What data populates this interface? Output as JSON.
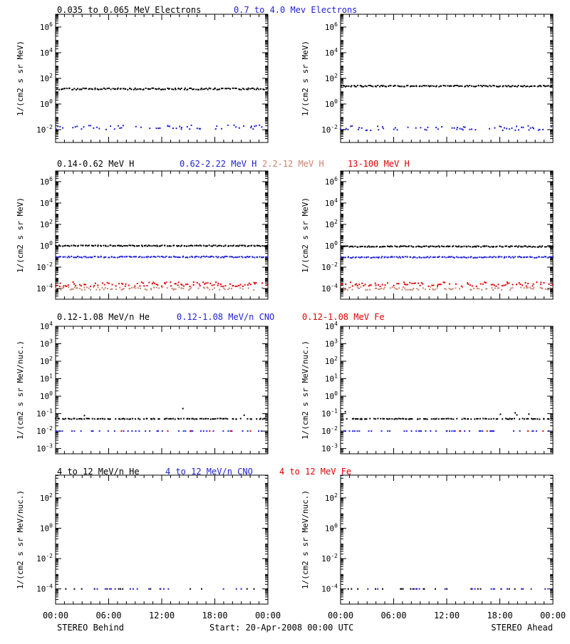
{
  "colors": {
    "black": "#000000",
    "blue": "#1f1fd6",
    "salmon": "#c9826d",
    "red": "#e00000"
  },
  "footer": {
    "left": "STEREO Behind",
    "center": "Start: 20-Apr-2008 00:00 UTC",
    "right": "STEREO Ahead"
  },
  "chart_data": [
    {
      "type": "scatter",
      "row": 0,
      "title_segments": [
        {
          "text": "0.035 to 0.065 MeV Electrons",
          "color": "black"
        },
        {
          "text": "0.7 to 4.0 Mev Electrons",
          "color": "blue"
        }
      ],
      "ylabel": "1/(cm2 s sr MeV)",
      "yscale": "log",
      "ylim_exp": [
        -3,
        7
      ],
      "ytick_exps": [
        -2,
        0,
        2,
        4,
        6
      ],
      "x_ticks": [
        "00:00",
        "06:00",
        "12:00",
        "18:00",
        "00:00"
      ],
      "panels": [
        {
          "spacecraft": "STEREO Behind",
          "series": [
            {
              "name": "0.035 to 0.065 MeV Electrons",
              "color": "black",
              "level": 15,
              "scatter": 1.15,
              "density": 1.0
            },
            {
              "name": "0.7 to 4.0 Mev Electrons",
              "color": "blue",
              "level": 0.015,
              "scatter": 1.5,
              "density": 0.45
            }
          ]
        },
        {
          "spacecraft": "STEREO Ahead",
          "series": [
            {
              "name": "0.035 to 0.065 MeV Electrons",
              "color": "black",
              "level": 25,
              "scatter": 1.12,
              "density": 1.0
            },
            {
              "name": "0.7 to 4.0 Mev Electrons",
              "color": "blue",
              "level": 0.013,
              "scatter": 1.5,
              "density": 0.45
            }
          ]
        }
      ]
    },
    {
      "type": "scatter",
      "row": 1,
      "title_segments": [
        {
          "text": "0.14-0.62 MeV H",
          "color": "black"
        },
        {
          "text": "0.62-2.22 MeV H",
          "color": "blue"
        },
        {
          "text": "2.2-12 MeV H",
          "color": "salmon"
        },
        {
          "text": "13-100 MeV H",
          "color": "red"
        }
      ],
      "ylabel": "1/(cm2 s sr MeV)",
      "yscale": "log",
      "ylim_exp": [
        -5,
        7
      ],
      "ytick_exps": [
        -4,
        -2,
        0,
        2,
        4,
        6
      ],
      "x_ticks": [
        "00:00",
        "06:00",
        "12:00",
        "18:00",
        "00:00"
      ],
      "panels": [
        {
          "spacecraft": "STEREO Behind",
          "series": [
            {
              "name": "0.14-0.62 MeV H",
              "color": "black",
              "level": 1.0,
              "scatter": 1.12,
              "density": 1.0
            },
            {
              "name": "0.62-2.22 MeV H",
              "color": "blue",
              "level": 0.09,
              "scatter": 1.15,
              "density": 1.0
            },
            {
              "name": "2.2-12 MeV H",
              "color": "salmon",
              "level": 0.0001,
              "scatter": 1.4,
              "density": 0.6
            },
            {
              "name": "13-100 MeV H",
              "color": "red",
              "level": 0.00025,
              "scatter": 1.6,
              "density": 0.6
            }
          ]
        },
        {
          "spacecraft": "STEREO Ahead",
          "series": [
            {
              "name": "0.14-0.62 MeV H",
              "color": "black",
              "level": 0.85,
              "scatter": 1.12,
              "density": 1.0
            },
            {
              "name": "0.62-2.22 MeV H",
              "color": "blue",
              "level": 0.085,
              "scatter": 1.15,
              "density": 1.0
            },
            {
              "name": "2.2-12 MeV H",
              "color": "salmon",
              "level": 0.0001,
              "scatter": 1.4,
              "density": 0.6
            },
            {
              "name": "13-100 MeV H",
              "color": "red",
              "level": 0.00025,
              "scatter": 1.6,
              "density": 0.6
            }
          ]
        }
      ]
    },
    {
      "type": "scatter",
      "row": 2,
      "title_segments": [
        {
          "text": "0.12-1.08 MeV/n He",
          "color": "black"
        },
        {
          "text": "0.12-1.08 MeV/n CNO",
          "color": "blue"
        },
        {
          "text": "0.12-1.08 MeV Fe",
          "color": "red"
        }
      ],
      "ylabel": "1/(cm2 s sr MeV/nuc.)",
      "yscale": "log",
      "ylim_exp": [
        -3.3,
        4
      ],
      "ytick_exps": [
        -3,
        -2,
        -1,
        0,
        1,
        2,
        3,
        4
      ],
      "x_ticks": [
        "00:00",
        "06:00",
        "12:00",
        "18:00",
        "00:00"
      ],
      "panels": [
        {
          "spacecraft": "STEREO Behind",
          "series": [
            {
              "name": "0.12-1.08 MeV/n He",
              "color": "black",
              "level": 0.05,
              "scatter": 1.05,
              "density": 0.75,
              "outliers": 0.1
            },
            {
              "name": "0.12-1.08 MeV/n CNO",
              "color": "blue",
              "level": 0.01,
              "scatter": 1.0,
              "density": 0.3
            },
            {
              "name": "0.12-1.08 MeV Fe",
              "color": "red",
              "level": 0.01,
              "scatter": 1.0,
              "density": 0.03
            }
          ]
        },
        {
          "spacecraft": "STEREO Ahead",
          "series": [
            {
              "name": "0.12-1.08 MeV/n He",
              "color": "black",
              "level": 0.05,
              "scatter": 1.05,
              "density": 0.75,
              "outliers": 0.1
            },
            {
              "name": "0.12-1.08 MeV/n CNO",
              "color": "blue",
              "level": 0.01,
              "scatter": 1.0,
              "density": 0.3
            },
            {
              "name": "0.12-1.08 MeV Fe",
              "color": "red",
              "level": 0.01,
              "scatter": 1.0,
              "density": 0.02
            }
          ]
        }
      ]
    },
    {
      "type": "scatter",
      "row": 3,
      "title_segments": [
        {
          "text": "4 to 12 MeV/n He",
          "color": "black"
        },
        {
          "text": "4 to 12 MeV/n CNO",
          "color": "blue"
        },
        {
          "text": "4 to 12 MeV Fe",
          "color": "red"
        }
      ],
      "ylabel": "1/(cm2 s sr MeV/nuc.)",
      "yscale": "log",
      "ylim_exp": [
        -5,
        3.5
      ],
      "ytick_exps": [
        -4,
        -2,
        0,
        2
      ],
      "x_ticks": [
        "00:00",
        "06:00",
        "12:00",
        "18:00",
        "00:00"
      ],
      "panels": [
        {
          "spacecraft": "STEREO Behind",
          "series": [
            {
              "name": "4 to 12 MeV/n He",
              "color": "black",
              "level": 0.0001,
              "scatter": 1.0,
              "density": 0.08
            },
            {
              "name": "4 to 12 MeV/n CNO",
              "color": "blue",
              "level": 0.0001,
              "scatter": 1.0,
              "density": 0.08
            }
          ]
        },
        {
          "spacecraft": "STEREO Ahead",
          "series": [
            {
              "name": "4 to 12 MeV/n He",
              "color": "black",
              "level": 0.0001,
              "scatter": 1.0,
              "density": 0.12
            },
            {
              "name": "4 to 12 MeV/n CNO",
              "color": "blue",
              "level": 0.0001,
              "scatter": 1.0,
              "density": 0.12
            }
          ]
        }
      ]
    }
  ]
}
